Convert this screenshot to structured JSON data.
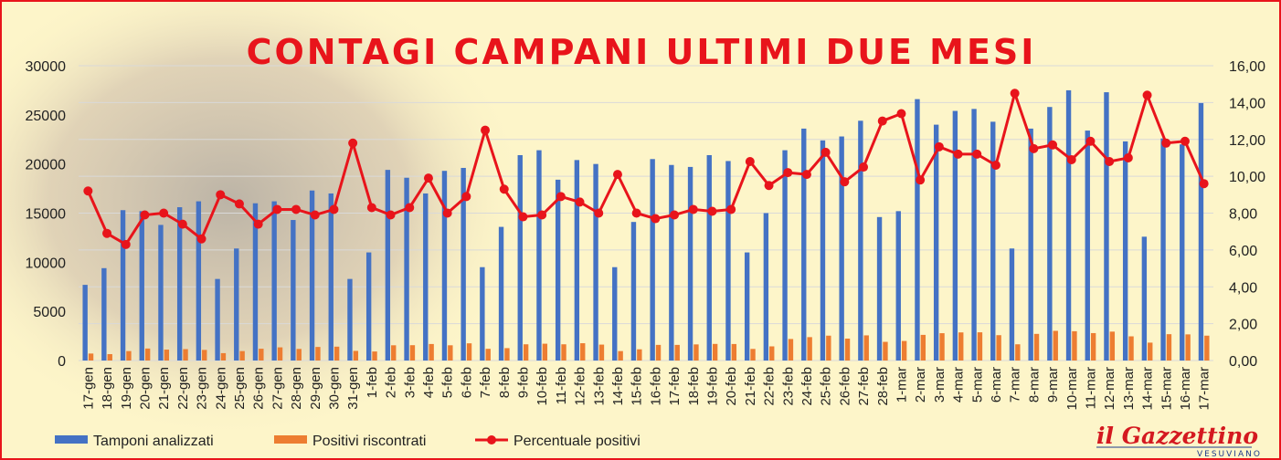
{
  "chart_data": {
    "type": "bar",
    "title": "CONTAGI CAMPANI ULTIMI DUE MESI",
    "categories": [
      "17-gen",
      "18-gen",
      "19-gen",
      "20-gen",
      "21-gen",
      "22-gen",
      "23-gen",
      "24-gen",
      "25-gen",
      "26-gen",
      "27-gen",
      "28-gen",
      "29-gen",
      "30-gen",
      "31-gen",
      "1-feb",
      "2-feb",
      "3-feb",
      "4-feb",
      "5-feb",
      "6-feb",
      "7-feb",
      "8-feb",
      "9-feb",
      "10-feb",
      "11-feb",
      "12-feb",
      "13-feb",
      "14-feb",
      "15-feb",
      "16-feb",
      "17-feb",
      "18-feb",
      "19-feb",
      "20-feb",
      "21-feb",
      "22-feb",
      "23-feb",
      "24-feb",
      "25-feb",
      "26-feb",
      "27-feb",
      "28-feb",
      "1-mar",
      "2-mar",
      "3-mar",
      "4-mar",
      "5-mar",
      "6-mar",
      "7-mar",
      "8-mar",
      "9-mar",
      "10-mar",
      "11-mar",
      "12-mar",
      "13-mar",
      "14-mar",
      "15-mar",
      "16-mar",
      "17-mar"
    ],
    "series": [
      {
        "name": "Tamponi analizzati",
        "axis": "left",
        "kind": "bar",
        "color": "#4472c4",
        "values": [
          7700,
          9400,
          15300,
          15200,
          13800,
          15600,
          16200,
          8300,
          11400,
          16000,
          16200,
          14300,
          17300,
          17000,
          8300,
          11000,
          19400,
          18600,
          17000,
          19300,
          19600,
          9500,
          13600,
          20900,
          21400,
          18400,
          20400,
          20000,
          9500,
          14100,
          20500,
          19900,
          19700,
          20900,
          20300,
          11000,
          15000,
          21400,
          23600,
          22400,
          22800,
          24400,
          14600,
          15200,
          26600,
          24000,
          25400,
          25600,
          24300,
          11400,
          23600,
          25800,
          27500,
          23400,
          27300,
          22300,
          12600,
          22600,
          22000,
          26200
        ]
      },
      {
        "name": "Positivi riscontrati",
        "axis": "left",
        "kind": "bar",
        "color": "#ed7d31",
        "values": [
          710,
          650,
          960,
          1220,
          1110,
          1160,
          1080,
          750,
          960,
          1200,
          1340,
          1180,
          1380,
          1410,
          980,
          920,
          1550,
          1560,
          1680,
          1550,
          1750,
          1190,
          1260,
          1650,
          1710,
          1650,
          1760,
          1620,
          960,
          1140,
          1590,
          1590,
          1640,
          1690,
          1680,
          1180,
          1440,
          2190,
          2380,
          2530,
          2230,
          2560,
          1900,
          1990,
          2610,
          2780,
          2860,
          2870,
          2580,
          1650,
          2710,
          3020,
          2980,
          2790,
          2940,
          2460,
          1820,
          2680,
          2660,
          2530
        ]
      },
      {
        "name": "Percentuale positivi",
        "axis": "right",
        "kind": "line",
        "color": "#e8141b",
        "values": [
          9.2,
          6.9,
          6.3,
          7.9,
          8.0,
          7.4,
          6.6,
          9.0,
          8.5,
          7.4,
          8.2,
          8.2,
          7.9,
          8.2,
          11.8,
          8.3,
          7.9,
          8.3,
          9.9,
          8.0,
          8.9,
          12.5,
          9.3,
          7.8,
          7.9,
          8.9,
          8.6,
          8.0,
          10.1,
          8.0,
          7.7,
          7.9,
          8.2,
          8.1,
          8.2,
          10.8,
          9.5,
          10.2,
          10.1,
          11.3,
          9.7,
          10.5,
          13.0,
          13.4,
          9.8,
          11.6,
          11.2,
          11.2,
          10.6,
          14.5,
          11.5,
          11.7,
          10.9,
          11.9,
          10.8,
          11.0,
          14.4,
          11.8,
          11.9,
          9.6
        ]
      }
    ],
    "ylim_left": [
      0,
      30000
    ],
    "yticks_left": [
      "0",
      "5000",
      "10000",
      "15000",
      "20000",
      "25000",
      "30000"
    ],
    "ylim_right": [
      0,
      16
    ],
    "yticks_right": [
      "0,00",
      "2,00",
      "4,00",
      "6,00",
      "8,00",
      "10,00",
      "12,00",
      "14,00",
      "16,00"
    ],
    "grid": true,
    "legend_position": "bottom-left"
  },
  "legend": [
    {
      "label": "Tamponi analizzati",
      "color": "#4472c4",
      "kind": "bar"
    },
    {
      "label": "Positivi riscontrati",
      "color": "#ed7d31",
      "kind": "bar"
    },
    {
      "label": "Percentuale positivi",
      "color": "#e8141b",
      "kind": "line"
    }
  ],
  "logo": {
    "main": "il Gazzettino",
    "sub": "VESUVIANO"
  },
  "colors": {
    "background": "#fdf5c9",
    "border": "#e8141b",
    "grid": "#d9d9d9"
  }
}
